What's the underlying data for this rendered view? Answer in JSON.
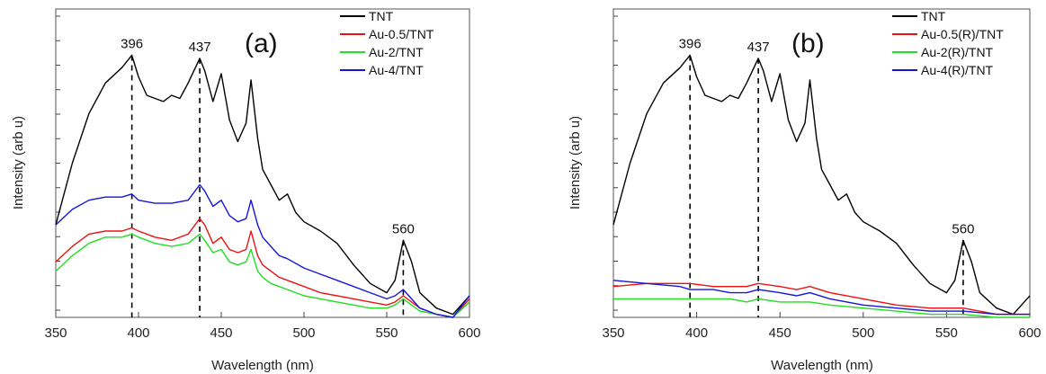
{
  "chart_data": [
    {
      "type": "line",
      "panel_label": "(a)",
      "xlabel": "Wavelength (nm)",
      "ylabel": "Intensity (arb u)",
      "xlim": [
        350,
        600
      ],
      "ylim": [
        0,
        1
      ],
      "x_ticks": [
        350,
        400,
        450,
        500,
        550,
        600
      ],
      "y_ticks_labeled": false,
      "legend_position": "top-right",
      "grid": false,
      "peak_markers": [
        {
          "label": "396",
          "x": 396,
          "y": 0.85
        },
        {
          "label": "437",
          "x": 437,
          "y": 0.84
        },
        {
          "label": "560",
          "x": 560,
          "y": 0.25
        }
      ],
      "series": [
        {
          "name": "TNT",
          "color": "#000000",
          "x": [
            350,
            360,
            370,
            380,
            390,
            396,
            400,
            405,
            410,
            415,
            420,
            425,
            430,
            437,
            440,
            445,
            450,
            455,
            460,
            465,
            468,
            472,
            475,
            480,
            485,
            490,
            495,
            500,
            510,
            520,
            530,
            540,
            550,
            555,
            560,
            565,
            570,
            580,
            590,
            600
          ],
          "y": [
            0.3,
            0.5,
            0.66,
            0.76,
            0.81,
            0.85,
            0.78,
            0.72,
            0.71,
            0.7,
            0.72,
            0.71,
            0.76,
            0.84,
            0.8,
            0.7,
            0.79,
            0.64,
            0.57,
            0.63,
            0.77,
            0.58,
            0.48,
            0.43,
            0.38,
            0.4,
            0.34,
            0.31,
            0.28,
            0.24,
            0.17,
            0.11,
            0.08,
            0.12,
            0.25,
            0.18,
            0.08,
            0.03,
            0.01,
            0.07
          ]
        },
        {
          "name": "Au-0.5/TNT",
          "color": "#ee1111",
          "x": [
            350,
            360,
            370,
            380,
            390,
            396,
            400,
            410,
            420,
            430,
            437,
            440,
            445,
            450,
            455,
            460,
            465,
            468,
            472,
            475,
            480,
            485,
            490,
            500,
            510,
            520,
            530,
            540,
            550,
            555,
            560,
            565,
            570,
            580,
            590,
            600
          ],
          "y": [
            0.18,
            0.23,
            0.27,
            0.28,
            0.28,
            0.29,
            0.28,
            0.26,
            0.25,
            0.27,
            0.32,
            0.3,
            0.24,
            0.26,
            0.22,
            0.21,
            0.22,
            0.28,
            0.2,
            0.17,
            0.15,
            0.13,
            0.12,
            0.1,
            0.08,
            0.07,
            0.06,
            0.05,
            0.04,
            0.05,
            0.07,
            0.05,
            0.03,
            0.01,
            0.0,
            0.06
          ]
        },
        {
          "name": "Au-2/TNT",
          "color": "#22dd22",
          "x": [
            350,
            360,
            370,
            380,
            390,
            396,
            400,
            410,
            420,
            430,
            437,
            440,
            445,
            450,
            455,
            460,
            465,
            468,
            472,
            475,
            480,
            485,
            490,
            500,
            510,
            520,
            530,
            540,
            550,
            555,
            560,
            565,
            570,
            580,
            590,
            600
          ],
          "y": [
            0.15,
            0.2,
            0.24,
            0.26,
            0.26,
            0.27,
            0.26,
            0.24,
            0.23,
            0.24,
            0.27,
            0.25,
            0.21,
            0.22,
            0.18,
            0.17,
            0.18,
            0.22,
            0.15,
            0.13,
            0.11,
            0.1,
            0.09,
            0.07,
            0.06,
            0.05,
            0.04,
            0.03,
            0.03,
            0.04,
            0.06,
            0.04,
            0.02,
            0.01,
            0.0,
            0.05
          ]
        },
        {
          "name": "Au-4/TNT",
          "color": "#1515dd",
          "x": [
            350,
            360,
            370,
            380,
            390,
            396,
            400,
            410,
            420,
            430,
            437,
            440,
            445,
            450,
            455,
            460,
            465,
            468,
            472,
            475,
            480,
            485,
            490,
            500,
            510,
            520,
            530,
            540,
            550,
            555,
            560,
            565,
            570,
            580,
            590,
            600
          ],
          "y": [
            0.3,
            0.35,
            0.38,
            0.39,
            0.39,
            0.4,
            0.38,
            0.37,
            0.37,
            0.38,
            0.43,
            0.41,
            0.36,
            0.38,
            0.33,
            0.31,
            0.32,
            0.38,
            0.3,
            0.26,
            0.23,
            0.2,
            0.19,
            0.16,
            0.14,
            0.12,
            0.1,
            0.08,
            0.06,
            0.07,
            0.09,
            0.06,
            0.03,
            0.01,
            0.0,
            0.07
          ]
        }
      ]
    },
    {
      "type": "line",
      "panel_label": "(b)",
      "xlabel": "Wavelength (nm)",
      "ylabel": "Intensity (arb u)",
      "xlim": [
        350,
        600
      ],
      "ylim": [
        0,
        1
      ],
      "x_ticks": [
        350,
        400,
        450,
        500,
        550,
        600
      ],
      "y_ticks_labeled": false,
      "legend_position": "top-right",
      "grid": false,
      "peak_markers": [
        {
          "label": "396",
          "x": 396,
          "y": 0.85
        },
        {
          "label": "437",
          "x": 437,
          "y": 0.84
        },
        {
          "label": "560",
          "x": 560,
          "y": 0.25
        }
      ],
      "series": [
        {
          "name": "TNT",
          "color": "#000000",
          "x": [
            350,
            360,
            370,
            380,
            390,
            396,
            400,
            405,
            410,
            415,
            420,
            425,
            430,
            437,
            440,
            445,
            450,
            455,
            460,
            465,
            468,
            472,
            475,
            480,
            485,
            490,
            495,
            500,
            510,
            520,
            530,
            540,
            550,
            555,
            560,
            565,
            570,
            580,
            590,
            600
          ],
          "y": [
            0.3,
            0.5,
            0.66,
            0.76,
            0.81,
            0.85,
            0.78,
            0.72,
            0.71,
            0.7,
            0.72,
            0.71,
            0.76,
            0.84,
            0.8,
            0.7,
            0.79,
            0.64,
            0.57,
            0.63,
            0.77,
            0.58,
            0.48,
            0.43,
            0.38,
            0.4,
            0.34,
            0.31,
            0.28,
            0.24,
            0.17,
            0.11,
            0.08,
            0.12,
            0.25,
            0.18,
            0.08,
            0.03,
            0.01,
            0.07
          ]
        },
        {
          "name": "Au-0.5(R)/TNT",
          "color": "#ee1111",
          "x": [
            350,
            370,
            390,
            396,
            410,
            420,
            430,
            437,
            450,
            460,
            468,
            480,
            500,
            520,
            540,
            560,
            580,
            600
          ],
          "y": [
            0.1,
            0.11,
            0.11,
            0.11,
            0.1,
            0.1,
            0.1,
            0.11,
            0.1,
            0.09,
            0.1,
            0.08,
            0.06,
            0.04,
            0.03,
            0.03,
            0.01,
            0.01
          ]
        },
        {
          "name": "Au-2(R)/TNT",
          "color": "#22dd22",
          "x": [
            350,
            370,
            390,
            396,
            410,
            420,
            430,
            437,
            450,
            460,
            468,
            480,
            500,
            520,
            540,
            560,
            580,
            600
          ],
          "y": [
            0.06,
            0.06,
            0.06,
            0.06,
            0.06,
            0.06,
            0.05,
            0.06,
            0.05,
            0.05,
            0.05,
            0.04,
            0.03,
            0.02,
            0.01,
            0.01,
            0.0,
            0.0
          ]
        },
        {
          "name": "Au-4(R)/TNT",
          "color": "#1515dd",
          "x": [
            350,
            370,
            390,
            396,
            410,
            420,
            430,
            437,
            450,
            460,
            468,
            480,
            500,
            520,
            540,
            560,
            580,
            600
          ],
          "y": [
            0.12,
            0.11,
            0.1,
            0.09,
            0.09,
            0.08,
            0.08,
            0.09,
            0.08,
            0.07,
            0.08,
            0.06,
            0.04,
            0.03,
            0.02,
            0.02,
            0.01,
            0.01
          ]
        }
      ]
    }
  ]
}
